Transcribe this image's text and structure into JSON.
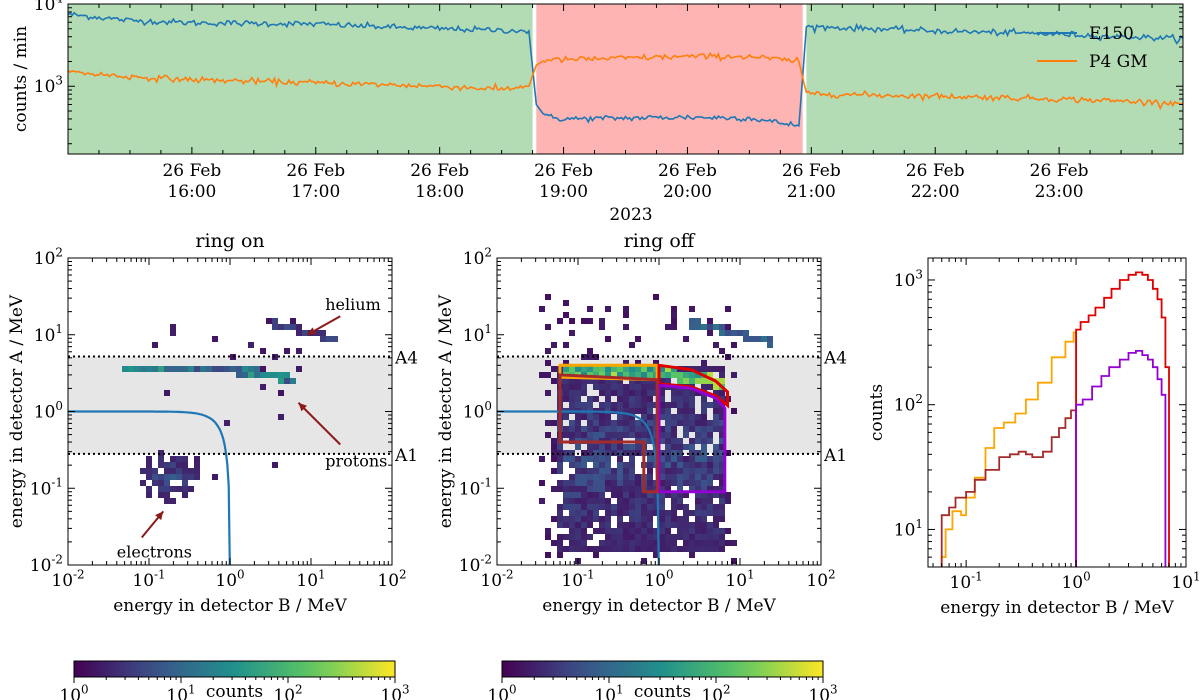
{
  "chart_data": [
    {
      "id": "timeseries",
      "type": "line",
      "ylabel": "counts / min",
      "xlabel": "2023",
      "yscale": "log",
      "ylim": [
        150,
        10000
      ],
      "xlim_hours": [
        15.0,
        24.0
      ],
      "x_ticks": [
        {
          "hour": 16,
          "date": "26 Feb",
          "time": "16:00"
        },
        {
          "hour": 17,
          "date": "26 Feb",
          "time": "17:00"
        },
        {
          "hour": 18,
          "date": "26 Feb",
          "time": "18:00"
        },
        {
          "hour": 19,
          "date": "26 Feb",
          "time": "19:00"
        },
        {
          "hour": 20,
          "date": "26 Feb",
          "time": "20:00"
        },
        {
          "hour": 21,
          "date": "26 Feb",
          "time": "21:00"
        },
        {
          "hour": 22,
          "date": "26 Feb",
          "time": "22:00"
        },
        {
          "hour": 23,
          "date": "26 Feb",
          "time": "23:00"
        }
      ],
      "y_ticks": [
        {
          "value": 1000,
          "base": "10",
          "exp": "3"
        },
        {
          "value": 10000,
          "base": "10",
          "exp": "4"
        }
      ],
      "regions": [
        {
          "from": 15.0,
          "to": 18.75,
          "state": "ring on",
          "color": "#b4dcb4"
        },
        {
          "from": 18.78,
          "to": 20.93,
          "state": "ring off",
          "color": "#ffb4b4"
        },
        {
          "from": 20.96,
          "to": 24.0,
          "state": "ring on",
          "color": "#b4dcb4"
        }
      ],
      "series": [
        {
          "name": "E150",
          "color": "#1f77b4",
          "points": [
            [
              15.0,
              7500
            ],
            [
              15.5,
              6300
            ],
            [
              16.0,
              5900
            ],
            [
              16.5,
              5800
            ],
            [
              17.0,
              5700
            ],
            [
              17.5,
              5300
            ],
            [
              18.0,
              5000
            ],
            [
              18.5,
              4800
            ],
            [
              18.72,
              4700
            ],
            [
              18.78,
              600
            ],
            [
              18.85,
              430
            ],
            [
              19.0,
              400
            ],
            [
              19.5,
              410
            ],
            [
              20.0,
              420
            ],
            [
              20.5,
              410
            ],
            [
              20.9,
              330
            ],
            [
              20.96,
              5300
            ],
            [
              21.5,
              5000
            ],
            [
              22.0,
              4700
            ],
            [
              22.5,
              4500
            ],
            [
              23.0,
              4300
            ],
            [
              23.5,
              4000
            ],
            [
              24.0,
              3800
            ]
          ]
        },
        {
          "name": "P4 GM",
          "color": "#ff7f0e",
          "points": [
            [
              15.0,
              1500
            ],
            [
              15.5,
              1300
            ],
            [
              16.0,
              1200
            ],
            [
              16.5,
              1150
            ],
            [
              17.0,
              1100
            ],
            [
              17.5,
              1050
            ],
            [
              18.0,
              1000
            ],
            [
              18.5,
              920
            ],
            [
              18.72,
              1000
            ],
            [
              18.78,
              1800
            ],
            [
              18.85,
              2100
            ],
            [
              19.0,
              2100
            ],
            [
              19.5,
              2200
            ],
            [
              20.0,
              2300
            ],
            [
              20.5,
              2300
            ],
            [
              20.9,
              2000
            ],
            [
              20.96,
              820
            ],
            [
              21.5,
              780
            ],
            [
              22.0,
              760
            ],
            [
              22.5,
              730
            ],
            [
              23.0,
              700
            ],
            [
              23.5,
              660
            ],
            [
              24.0,
              620
            ]
          ]
        }
      ]
    },
    {
      "id": "ring-on-hist2d",
      "type": "heatmap",
      "title": "ring on",
      "title_color": "#1a7a1a",
      "xlabel": "energy in detector B / MeV",
      "ylabel": "energy in detector A / MeV",
      "xscale": "log",
      "yscale": "log",
      "xlim": [
        0.01,
        100
      ],
      "ylim": [
        0.01,
        100
      ],
      "tick_exps": [
        "-2",
        "-1",
        "0",
        "1",
        "2"
      ],
      "band": [
        0.28,
        5.2
      ],
      "thresholds": [
        {
          "value": 5.2,
          "label": "A4"
        },
        {
          "value": 0.28,
          "label": "A1"
        }
      ],
      "annotations": [
        {
          "text": "helium",
          "x": 15,
          "y": 25,
          "arrow_to": [
            9,
            10
          ]
        },
        {
          "text": "protons",
          "x": 15,
          "y": 0.23,
          "arrow_to": [
            7,
            1.3
          ]
        },
        {
          "text": "electrons",
          "x": 0.04,
          "y": 0.015,
          "arrow_to": [
            0.15,
            0.05
          ]
        }
      ],
      "color_counts": {
        "min": 1,
        "max": 1000
      },
      "colorbar_label": "counts",
      "colorbar_ticks": [
        {
          "base": "10",
          "exp": "0"
        },
        {
          "base": "10",
          "exp": "1"
        },
        {
          "base": "10",
          "exp": "2"
        },
        {
          "base": "10",
          "exp": "3"
        }
      ]
    },
    {
      "id": "ring-off-hist2d",
      "type": "heatmap",
      "title": "ring off",
      "title_color": "#e00000",
      "xlabel": "energy in detector B / MeV",
      "ylabel": "energy in detector A / MeV",
      "xscale": "log",
      "yscale": "log",
      "xlim": [
        0.01,
        100
      ],
      "ylim": [
        0.01,
        100
      ],
      "tick_exps": [
        "-2",
        "-1",
        "0",
        "1",
        "2"
      ],
      "band": [
        0.28,
        5.2
      ],
      "thresholds": [
        {
          "value": 5.2,
          "label": "A4"
        },
        {
          "value": 0.28,
          "label": "A1"
        }
      ],
      "selection_boxes": [
        {
          "color": "#ffa500",
          "points": [
            [
              0.06,
              2.8
            ],
            [
              0.06,
              4.0
            ],
            [
              0.95,
              4.0
            ],
            [
              0.95,
              2.6
            ]
          ]
        },
        {
          "color": "#e00000",
          "points": [
            [
              1.0,
              2.3
            ],
            [
              1.0,
              4.0
            ],
            [
              2.5,
              3.5
            ],
            [
              5.0,
              2.5
            ],
            [
              7.0,
              1.8
            ],
            [
              7.0,
              1.2
            ],
            [
              5.0,
              1.6
            ],
            [
              2.5,
              2.1
            ]
          ]
        },
        {
          "color": "#9400d3",
          "points": [
            [
              1.0,
              0.09
            ],
            [
              1.0,
              2.2
            ],
            [
              2.5,
              2.0
            ],
            [
              5.0,
              1.5
            ],
            [
              6.5,
              1.1
            ],
            [
              6.5,
              0.09
            ]
          ]
        },
        {
          "color": "#a52a2a",
          "points": [
            [
              0.06,
              0.4
            ],
            [
              0.06,
              3.0
            ],
            [
              0.95,
              2.6
            ],
            [
              0.95,
              0.09
            ],
            [
              0.65,
              0.09
            ],
            [
              0.65,
              0.4
            ]
          ]
        }
      ],
      "color_counts": {
        "min": 1,
        "max": 1000
      },
      "colorbar_label": "counts",
      "colorbar_ticks": [
        {
          "base": "10",
          "exp": "0"
        },
        {
          "base": "10",
          "exp": "1"
        },
        {
          "base": "10",
          "exp": "2"
        },
        {
          "base": "10",
          "exp": "3"
        }
      ]
    },
    {
      "id": "energy-spectrum",
      "type": "line",
      "style": "step",
      "xlabel": "energy in detector B / MeV",
      "ylabel": "counts",
      "xscale": "log",
      "yscale": "log",
      "xlim": [
        0.045,
        10
      ],
      "ylim": [
        5,
        1500
      ],
      "x_ticks": [
        {
          "value": 0.1,
          "base": "10",
          "exp": "-1"
        },
        {
          "value": 1,
          "base": "10",
          "exp": "0"
        },
        {
          "value": 10,
          "base": "10",
          "exp": "1"
        }
      ],
      "y_ticks": [
        {
          "value": 10,
          "base": "10",
          "exp": "1"
        },
        {
          "value": 100,
          "base": "10",
          "exp": "2"
        },
        {
          "value": 1000,
          "base": "10",
          "exp": "3"
        }
      ],
      "series": [
        {
          "name": "orange",
          "color": "#ffa500",
          "points": [
            [
              0.06,
              6
            ],
            [
              0.065,
              10
            ],
            [
              0.075,
              14
            ],
            [
              0.09,
              13
            ],
            [
              0.1,
              18
            ],
            [
              0.12,
              26
            ],
            [
              0.15,
              45
            ],
            [
              0.18,
              65
            ],
            [
              0.22,
              72
            ],
            [
              0.28,
              85
            ],
            [
              0.35,
              110
            ],
            [
              0.45,
              150
            ],
            [
              0.6,
              240
            ],
            [
              0.8,
              320
            ],
            [
              0.95,
              380
            ],
            [
              1.0,
              380
            ]
          ]
        },
        {
          "name": "brown",
          "color": "#a52a2a",
          "points": [
            [
              0.06,
              13
            ],
            [
              0.07,
              15
            ],
            [
              0.08,
              18
            ],
            [
              0.1,
              20
            ],
            [
              0.12,
              25
            ],
            [
              0.15,
              30
            ],
            [
              0.2,
              38
            ],
            [
              0.25,
              40
            ],
            [
              0.3,
              42
            ],
            [
              0.35,
              40
            ],
            [
              0.4,
              38
            ],
            [
              0.5,
              42
            ],
            [
              0.6,
              55
            ],
            [
              0.7,
              65
            ],
            [
              0.8,
              78
            ],
            [
              0.9,
              90
            ],
            [
              1.0,
              5
            ]
          ]
        },
        {
          "name": "red",
          "color": "#e00000",
          "points": [
            [
              1.0,
              400
            ],
            [
              1.1,
              460
            ],
            [
              1.3,
              520
            ],
            [
              1.5,
              600
            ],
            [
              1.8,
              720
            ],
            [
              2.1,
              850
            ],
            [
              2.5,
              1000
            ],
            [
              3.0,
              1100
            ],
            [
              3.5,
              1150
            ],
            [
              4.0,
              1100
            ],
            [
              4.5,
              1000
            ],
            [
              5.0,
              850
            ],
            [
              5.5,
              700
            ],
            [
              6.0,
              500
            ],
            [
              6.5,
              200
            ],
            [
              7.0,
              200
            ]
          ]
        },
        {
          "name": "purple",
          "color": "#9400d3",
          "points": [
            [
              1.0,
              100
            ],
            [
              1.15,
              110
            ],
            [
              1.4,
              140
            ],
            [
              1.7,
              170
            ],
            [
              2.0,
              200
            ],
            [
              2.5,
              230
            ],
            [
              3.0,
              260
            ],
            [
              3.5,
              270
            ],
            [
              4.0,
              250
            ],
            [
              4.5,
              230
            ],
            [
              5.0,
              200
            ],
            [
              5.5,
              160
            ],
            [
              6.0,
              120
            ],
            [
              6.5,
              5
            ]
          ]
        }
      ]
    }
  ]
}
